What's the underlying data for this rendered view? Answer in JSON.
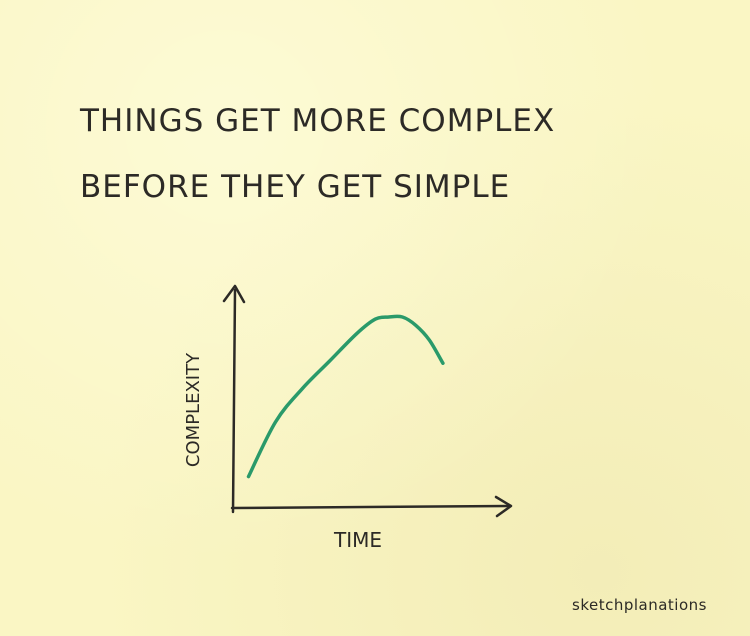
{
  "header": {
    "title_line_1": "THiNGS GET MORE COMPLEX",
    "title_line_2": "BEFORE THEY GET SiMPLE"
  },
  "credit": "sketchplanations",
  "colors": {
    "paper": "#faf6c4",
    "ink": "#2c2a26",
    "curve": "#2a9a6a"
  },
  "chart_data": {
    "type": "line",
    "xlabel": "TiME",
    "ylabel": "COMPLEXiTY",
    "grid": false,
    "legend": "none",
    "xlim": [
      0,
      100
    ],
    "ylim": [
      0,
      100
    ],
    "series": [
      {
        "x": [
          5,
          15,
          25,
          35,
          45,
          52,
          57,
          62,
          67,
          72,
          77
        ],
        "y": [
          14,
          40,
          56,
          69,
          82,
          89,
          90,
          90,
          86,
          79,
          68
        ]
      }
    ]
  }
}
